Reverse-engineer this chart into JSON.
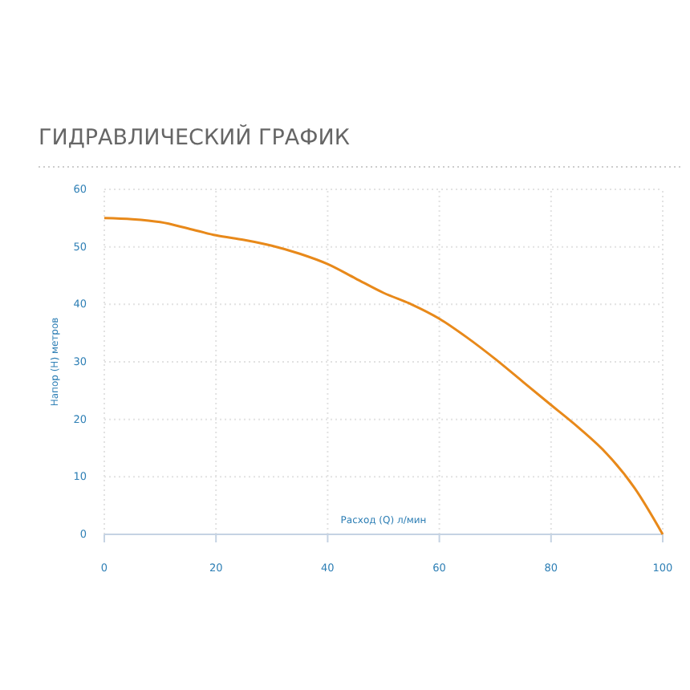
{
  "chart_data": {
    "type": "line",
    "title": "ГИДРАВЛИЧЕСКИЙ ГРАФИК",
    "xlabel": "Расход (Q) л/мин",
    "ylabel": "Напор (H) метров",
    "x": [
      0,
      5,
      10,
      15,
      20,
      25,
      30,
      35,
      40,
      45,
      50,
      55,
      60,
      65,
      70,
      75,
      80,
      85,
      90,
      95,
      100
    ],
    "series": [
      {
        "color": "#e8891a",
        "values": [
          55,
          54.8,
          54.3,
          53.2,
          52,
          51.2,
          50.2,
          48.8,
          47,
          44.5,
          42,
          40,
          37.5,
          34.2,
          30.5,
          26.5,
          22.5,
          18.5,
          14,
          8,
          0
        ]
      }
    ],
    "xlim": [
      0,
      100
    ],
    "xticks": [
      0,
      20,
      40,
      60,
      80,
      100
    ],
    "ylim": [
      0,
      60
    ],
    "yticks": [
      0,
      10,
      20,
      30,
      40,
      50,
      60
    ],
    "grid": true,
    "line_style": "solid",
    "marker": "none"
  }
}
